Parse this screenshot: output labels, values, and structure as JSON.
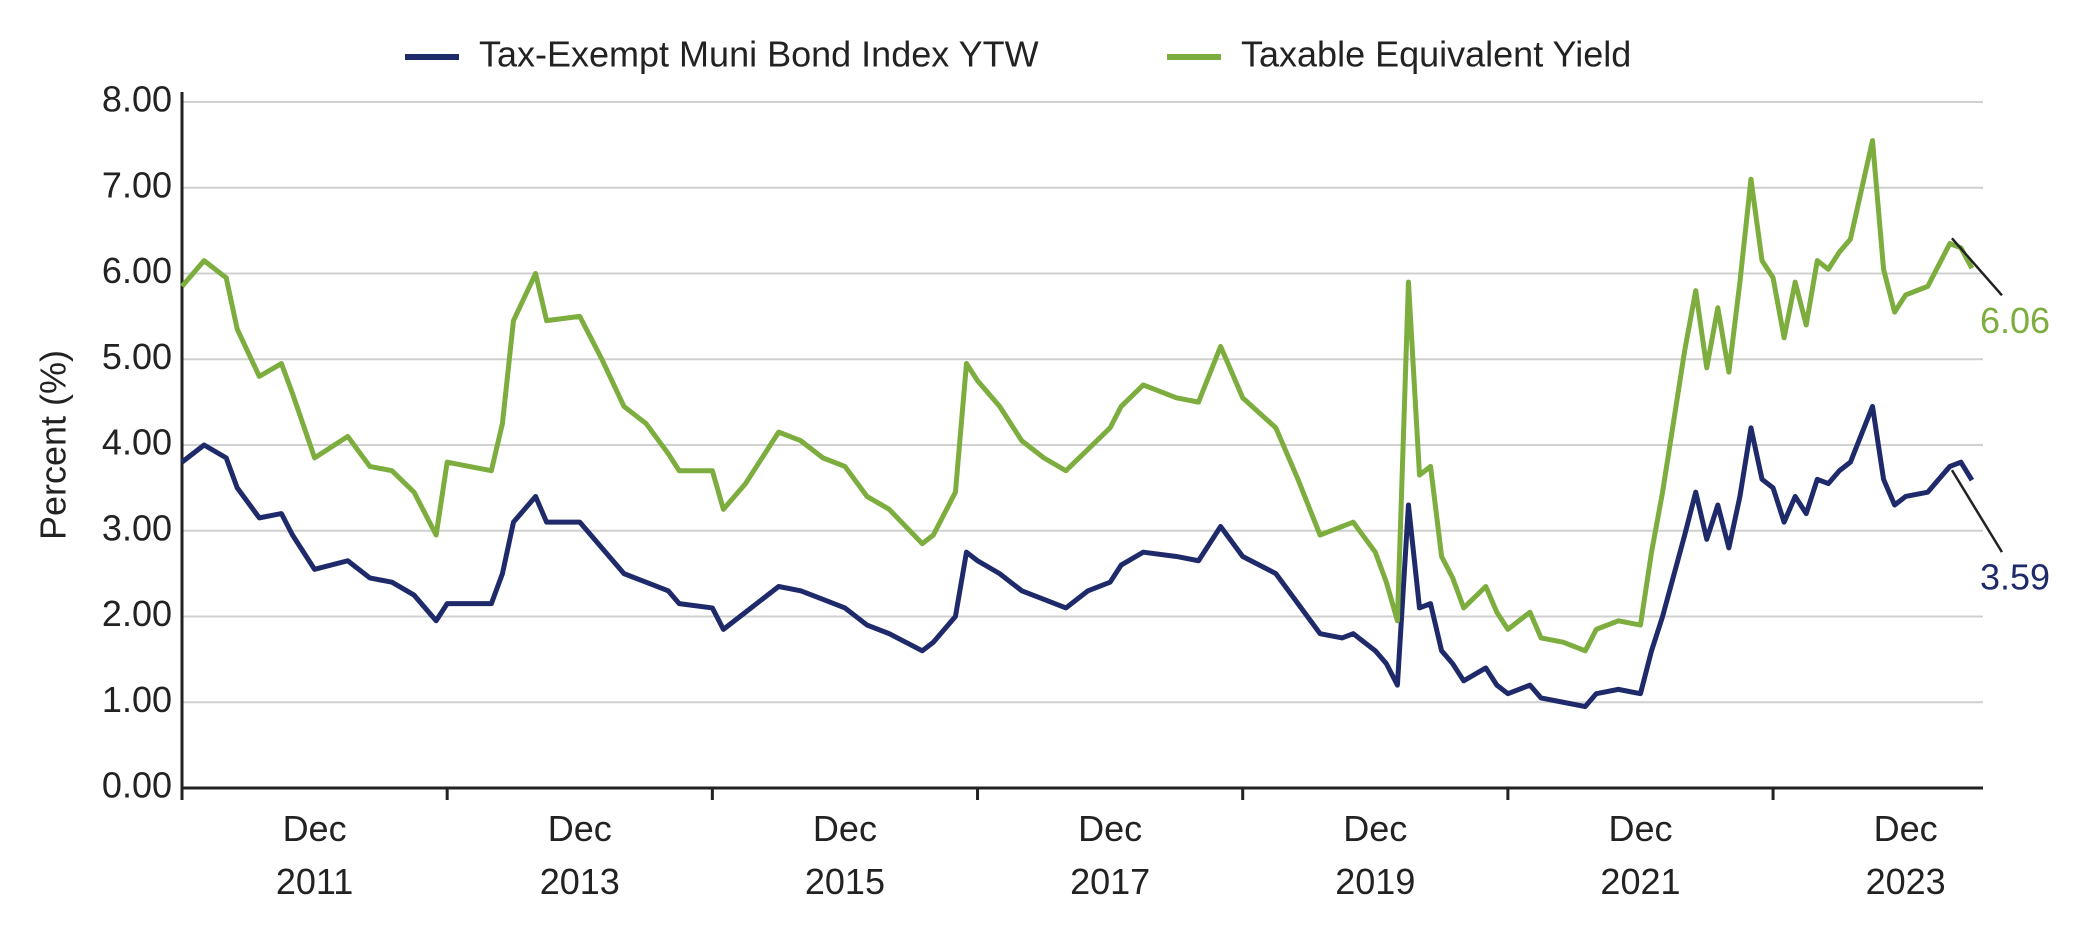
{
  "chart_data": {
    "type": "line",
    "y_label": "Percent (%)",
    "x": [
      "2010-12",
      "2011-02",
      "2011-04",
      "2011-05",
      "2011-07",
      "2011-09",
      "2011-10",
      "2011-12",
      "2012-03",
      "2012-05",
      "2012-07",
      "2012-09",
      "2012-11",
      "2012-12",
      "2013-04",
      "2013-05",
      "2013-06",
      "2013-08",
      "2013-09",
      "2013-12",
      "2014-02",
      "2014-04",
      "2014-06",
      "2014-08",
      "2014-09",
      "2014-12",
      "2015-01",
      "2015-03",
      "2015-06",
      "2015-08",
      "2015-10",
      "2015-12",
      "2016-02",
      "2016-04",
      "2016-07",
      "2016-08",
      "2016-10",
      "2016-11",
      "2016-12",
      "2017-02",
      "2017-04",
      "2017-06",
      "2017-08",
      "2017-10",
      "2017-12",
      "2018-01",
      "2018-03",
      "2018-06",
      "2018-08",
      "2018-10",
      "2018-12",
      "2019-03",
      "2019-05",
      "2019-07",
      "2019-09",
      "2019-10",
      "2019-12",
      "2020-01",
      "2020-02",
      "2020-03",
      "2020-04",
      "2020-05",
      "2020-06",
      "2020-07",
      "2020-08",
      "2020-10",
      "2020-11",
      "2020-12",
      "2021-02",
      "2021-03",
      "2021-05",
      "2021-07",
      "2021-08",
      "2021-10",
      "2021-12",
      "2022-01",
      "2022-02",
      "2022-04",
      "2022-05",
      "2022-06",
      "2022-07",
      "2022-08",
      "2022-09",
      "2022-10",
      "2022-11",
      "2022-12",
      "2023-01",
      "2023-02",
      "2023-03",
      "2023-04",
      "2023-05",
      "2023-06",
      "2023-07",
      "2023-09",
      "2023-10",
      "2023-11",
      "2023-12",
      "2024-02",
      "2024-03",
      "2024-04",
      "2024-05",
      "2024-06"
    ],
    "series": [
      {
        "name": "Tax-Exempt Muni Bond Index YTW",
        "color": "#1f2a6b",
        "values": [
          3.8,
          4.0,
          3.85,
          3.5,
          3.15,
          3.2,
          2.95,
          2.55,
          2.65,
          2.45,
          2.4,
          2.25,
          1.95,
          2.15,
          2.15,
          2.5,
          3.1,
          3.4,
          3.1,
          3.1,
          2.8,
          2.5,
          2.4,
          2.3,
          2.15,
          2.1,
          1.85,
          2.05,
          2.35,
          2.3,
          2.2,
          2.1,
          1.9,
          1.8,
          1.6,
          1.7,
          2.0,
          2.75,
          2.65,
          2.5,
          2.3,
          2.2,
          2.1,
          2.3,
          2.4,
          2.6,
          2.75,
          2.7,
          2.65,
          3.05,
          2.7,
          2.5,
          2.15,
          1.8,
          1.75,
          1.8,
          1.6,
          1.45,
          1.2,
          3.3,
          2.1,
          2.15,
          1.6,
          1.45,
          1.25,
          1.4,
          1.2,
          1.1,
          1.2,
          1.05,
          1.0,
          0.95,
          1.1,
          1.15,
          1.1,
          1.6,
          2.0,
          2.95,
          3.45,
          2.9,
          3.3,
          2.8,
          3.4,
          4.2,
          3.6,
          3.5,
          3.1,
          3.4,
          3.2,
          3.6,
          3.55,
          3.7,
          3.8,
          4.45,
          3.6,
          3.3,
          3.4,
          3.45,
          3.6,
          3.75,
          3.8,
          3.59
        ]
      },
      {
        "name": "Taxable Equivalent Yield",
        "color": "#7cad3e",
        "values": [
          5.85,
          6.15,
          5.95,
          5.35,
          4.8,
          4.95,
          4.6,
          3.85,
          4.1,
          3.75,
          3.7,
          3.45,
          2.95,
          3.8,
          3.7,
          4.25,
          5.45,
          6.0,
          5.45,
          5.5,
          5.0,
          4.45,
          4.25,
          3.9,
          3.7,
          3.7,
          3.25,
          3.55,
          4.15,
          4.05,
          3.85,
          3.75,
          3.4,
          3.25,
          2.85,
          2.95,
          3.45,
          4.95,
          4.75,
          4.45,
          4.05,
          3.85,
          3.7,
          3.95,
          4.2,
          4.45,
          4.7,
          4.55,
          4.5,
          5.15,
          4.55,
          4.2,
          3.6,
          2.95,
          3.05,
          3.1,
          2.75,
          2.4,
          1.95,
          5.9,
          3.65,
          3.75,
          2.7,
          2.45,
          2.1,
          2.35,
          2.05,
          1.85,
          2.05,
          1.75,
          1.7,
          1.6,
          1.85,
          1.95,
          1.9,
          2.75,
          3.45,
          5.1,
          5.8,
          4.9,
          5.6,
          4.85,
          5.9,
          7.1,
          6.15,
          5.95,
          5.25,
          5.9,
          5.4,
          6.15,
          6.05,
          6.25,
          6.4,
          7.55,
          6.05,
          5.55,
          5.75,
          5.85,
          6.1,
          6.35,
          6.3,
          6.06
        ]
      }
    ],
    "xlim": [
      "2010-12",
      "2024-07"
    ],
    "xticks": [
      {
        "value": "2011-12",
        "label": "Dec 2011"
      },
      {
        "value": "2013-12",
        "label": "Dec 2013"
      },
      {
        "value": "2015-12",
        "label": "Dec 2015"
      },
      {
        "value": "2017-12",
        "label": "Dec 2017"
      },
      {
        "value": "2019-12",
        "label": "Dec 2019"
      },
      {
        "value": "2021-12",
        "label": "Dec 2021"
      },
      {
        "value": "2023-12",
        "label": "Dec 2023"
      }
    ],
    "ylim": [
      0,
      8
    ],
    "yticks": [
      {
        "value": 0,
        "label": "0.00"
      },
      {
        "value": 1,
        "label": "1.00"
      },
      {
        "value": 2,
        "label": "2.00"
      },
      {
        "value": 3,
        "label": "3.00"
      },
      {
        "value": 4,
        "label": "4.00"
      },
      {
        "value": 5,
        "label": "5.00"
      },
      {
        "value": 6,
        "label": "6.00"
      },
      {
        "value": 7,
        "label": "7.00"
      },
      {
        "value": 8,
        "label": "8.00"
      }
    ],
    "grid": true,
    "legend": "top"
  }
}
